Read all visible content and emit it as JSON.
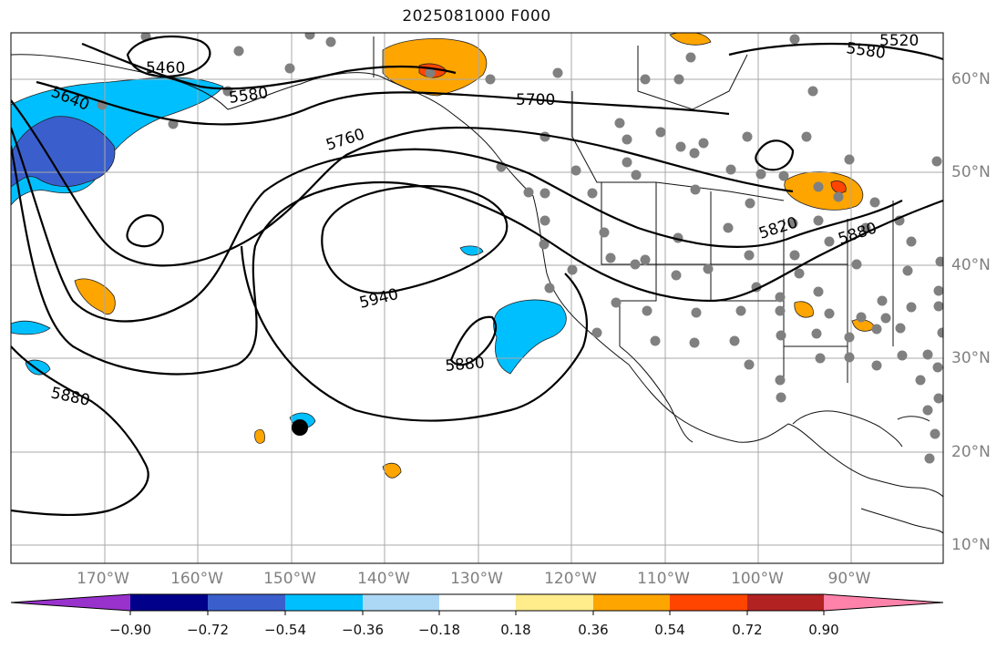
{
  "title": "2025081000 F000",
  "longitude_labels": [
    "170°W",
    "160°W",
    "150°W",
    "140°W",
    "130°W",
    "120°W",
    "110°W",
    "100°W",
    "90°W"
  ],
  "latitude_labels": [
    "60°N",
    "50°N",
    "40°N",
    "30°N",
    "20°N",
    "10°N"
  ],
  "contour_labels": [
    "5460",
    "5520",
    "5580",
    "5580",
    "5640",
    "5700",
    "5760",
    "5820",
    "5880",
    "5880",
    "5880",
    "5940"
  ],
  "colorbar": {
    "tick_labels": [
      "−0.90",
      "−0.72",
      "−0.54",
      "−0.36",
      "−0.18",
      "0.18",
      "0.36",
      "0.54",
      "0.72",
      "0.90"
    ],
    "colors": [
      "#9932cc",
      "#00008b",
      "#3a5fcd",
      "#00bfff",
      "#add8f5",
      "#ffffff",
      "#ffec8b",
      "#ffa500",
      "#ff4500",
      "#b22222",
      "#ff82ab"
    ]
  }
}
